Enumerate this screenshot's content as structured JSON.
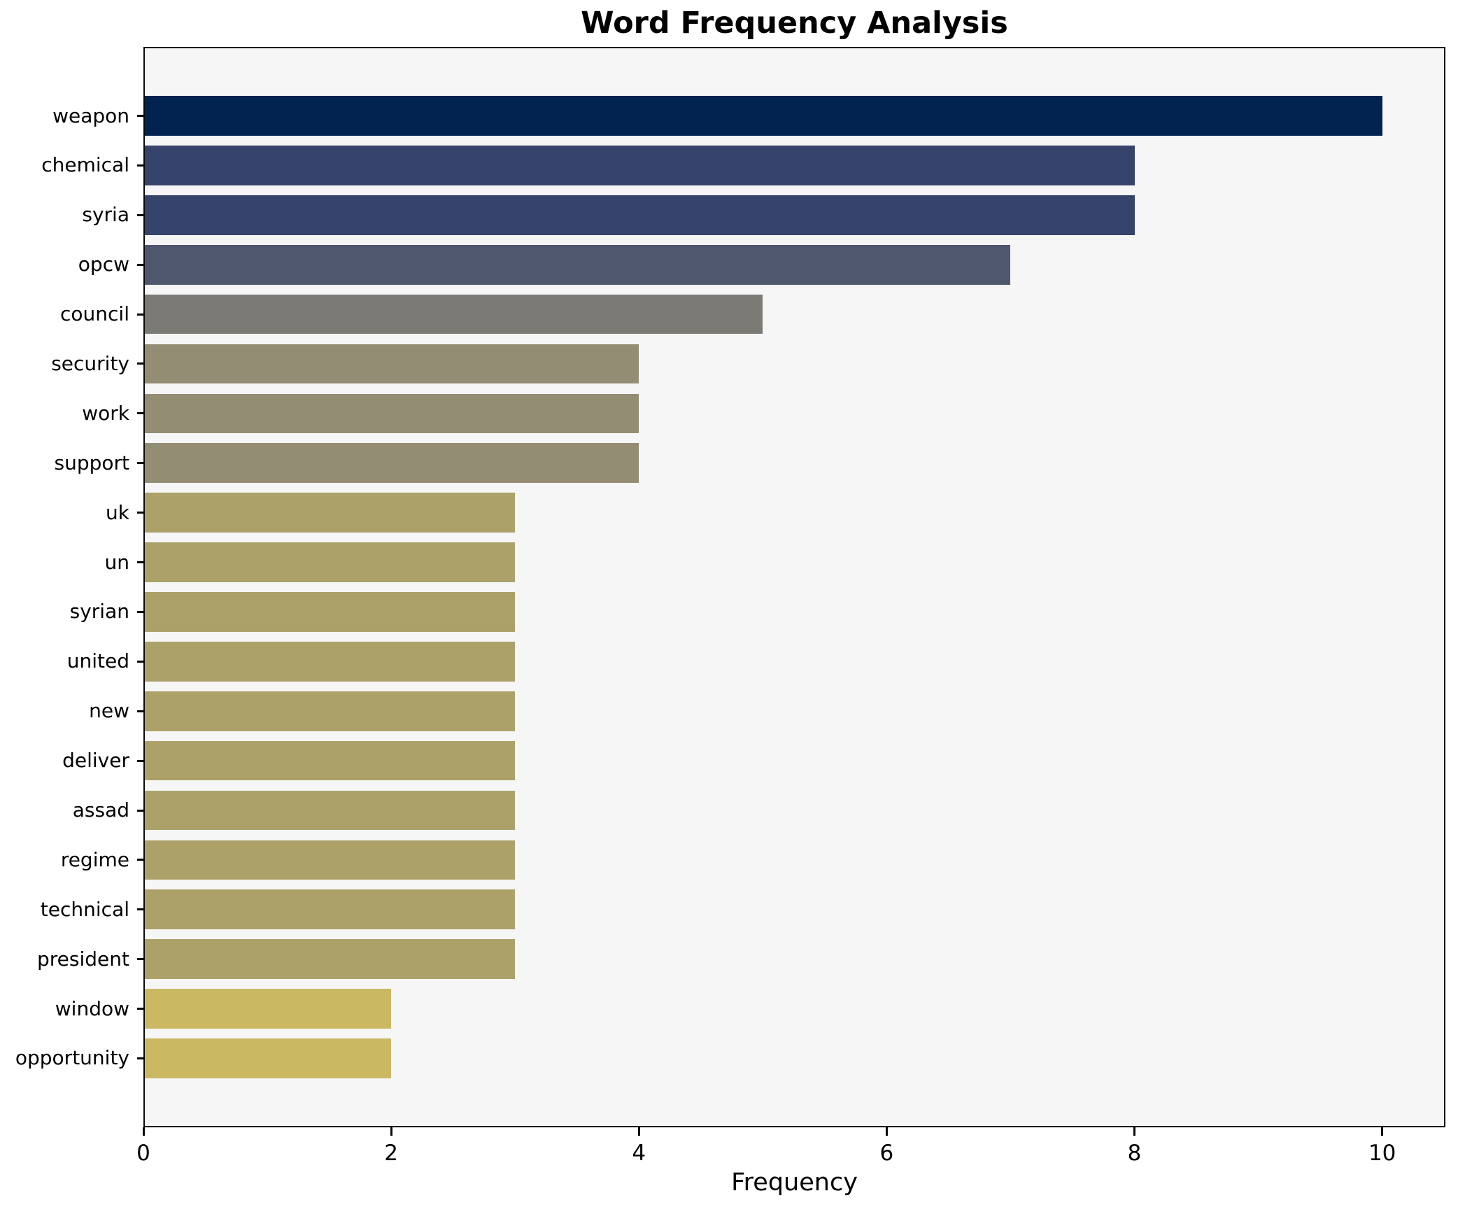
{
  "chart_data": {
    "type": "bar",
    "orientation": "horizontal",
    "title": "Word Frequency Analysis",
    "xlabel": "Frequency",
    "ylabel": "",
    "categories": [
      "weapon",
      "chemical",
      "syria",
      "opcw",
      "council",
      "security",
      "work",
      "support",
      "uk",
      "un",
      "syrian",
      "united",
      "new",
      "deliver",
      "assad",
      "regime",
      "technical",
      "president",
      "window",
      "opportunity"
    ],
    "values": [
      10,
      8,
      8,
      7,
      5,
      4,
      4,
      4,
      3,
      3,
      3,
      3,
      3,
      3,
      3,
      3,
      3,
      3,
      2,
      2
    ],
    "bar_colors": [
      "#022350",
      "#36446b",
      "#36446b",
      "#4e576d",
      "#7b7a75",
      "#938d74",
      "#938d74",
      "#938d74",
      "#aca169",
      "#aca169",
      "#aca169",
      "#aca169",
      "#aca169",
      "#aca169",
      "#aca169",
      "#aca169",
      "#aca169",
      "#aca169",
      "#cab863",
      "#cab863"
    ],
    "x_ticks": [
      0,
      2,
      4,
      6,
      8,
      10
    ],
    "xlim": [
      0,
      10.51
    ],
    "grid": false,
    "legend": false,
    "colormap": "cividis-reversed-by-value",
    "plot_background": "#f6f6f7",
    "figure_background": "#ffffff",
    "spine_color": "#0a0a0a",
    "text_color": "#000000"
  }
}
